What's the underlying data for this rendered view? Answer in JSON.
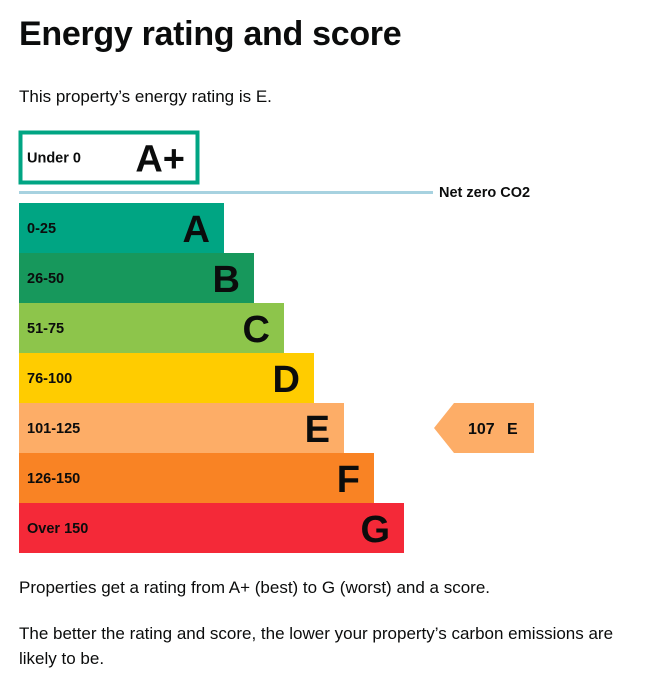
{
  "page": {
    "title": "Energy rating and score",
    "intro": "This property’s energy rating is E.",
    "footer_1": "Properties get a rating from A+ (best) to G (worst) and a score.",
    "footer_2": "The better the rating and score, the lower your property’s carbon emissions are likely to be."
  },
  "chart_data": {
    "type": "bar",
    "orientation": "horizontal",
    "bands": [
      {
        "letter": "A+",
        "range": "Under 0",
        "color": "#00a583",
        "style": "outline"
      },
      {
        "letter": "A",
        "range": "0-25",
        "color": "#00a583",
        "style": "filled"
      },
      {
        "letter": "B",
        "range": "26-50",
        "color": "#17985c",
        "style": "filled"
      },
      {
        "letter": "C",
        "range": "51-75",
        "color": "#8dc54b",
        "style": "filled"
      },
      {
        "letter": "D",
        "range": "76-100",
        "color": "#ffcc00",
        "style": "filled"
      },
      {
        "letter": "E",
        "range": "101-125",
        "color": "#fdad67",
        "style": "filled"
      },
      {
        "letter": "F",
        "range": "126-150",
        "color": "#f98324",
        "style": "filled"
      },
      {
        "letter": "G",
        "range": "Over 150",
        "color": "#f42938",
        "style": "filled"
      }
    ],
    "net_zero": {
      "label": "Net zero CO2",
      "color": "#a7d2e0"
    },
    "current": {
      "score": "107",
      "letter": "E",
      "color": "#fdad67",
      "band": "E"
    }
  }
}
